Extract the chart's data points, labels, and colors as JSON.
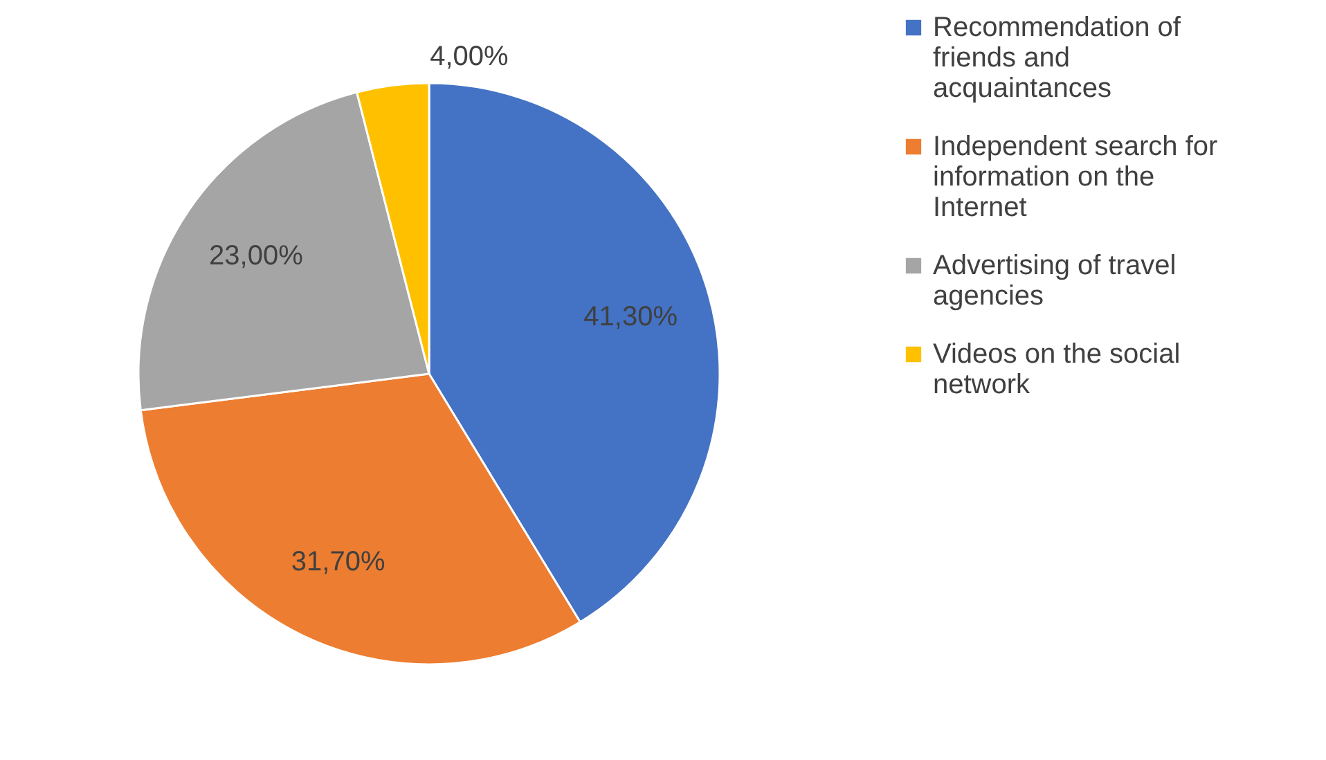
{
  "chart_data": {
    "type": "pie",
    "categories": [
      "Recommendation of friends and acquaintances",
      "Independent search for information on the Internet",
      "Advertising of travel agencies",
      "Videos on the social network"
    ],
    "values": [
      41.3,
      31.7,
      23.0,
      4.0
    ],
    "colors": [
      "#4472c4",
      "#ed7d31",
      "#a5a5a5",
      "#ffc000"
    ],
    "value_labels": [
      "41,30%",
      "31,70%",
      "23,00%",
      "4,00%"
    ],
    "legend": "right"
  }
}
